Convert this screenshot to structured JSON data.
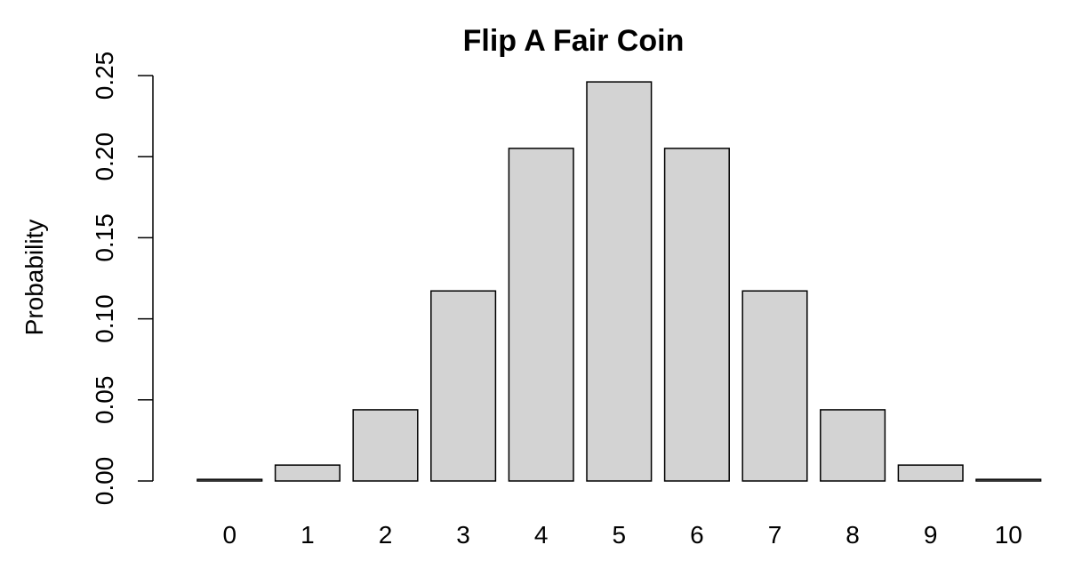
{
  "chart_data": {
    "type": "bar",
    "title": "Flip A Fair Coin",
    "xlabel": "",
    "ylabel": "Probability",
    "categories": [
      "0",
      "1",
      "2",
      "3",
      "4",
      "5",
      "6",
      "7",
      "8",
      "9",
      "10"
    ],
    "values": [
      0.001,
      0.0098,
      0.0439,
      0.1172,
      0.2051,
      0.2461,
      0.2051,
      0.1172,
      0.0439,
      0.0098,
      0.001
    ],
    "ylim": [
      0,
      0.25
    ],
    "yticks": [
      "0.00",
      "0.05",
      "0.10",
      "0.15",
      "0.20",
      "0.25"
    ],
    "bar_color": "#d3d3d3",
    "bar_border_color": "#000000",
    "grid": false,
    "legend": "none"
  }
}
